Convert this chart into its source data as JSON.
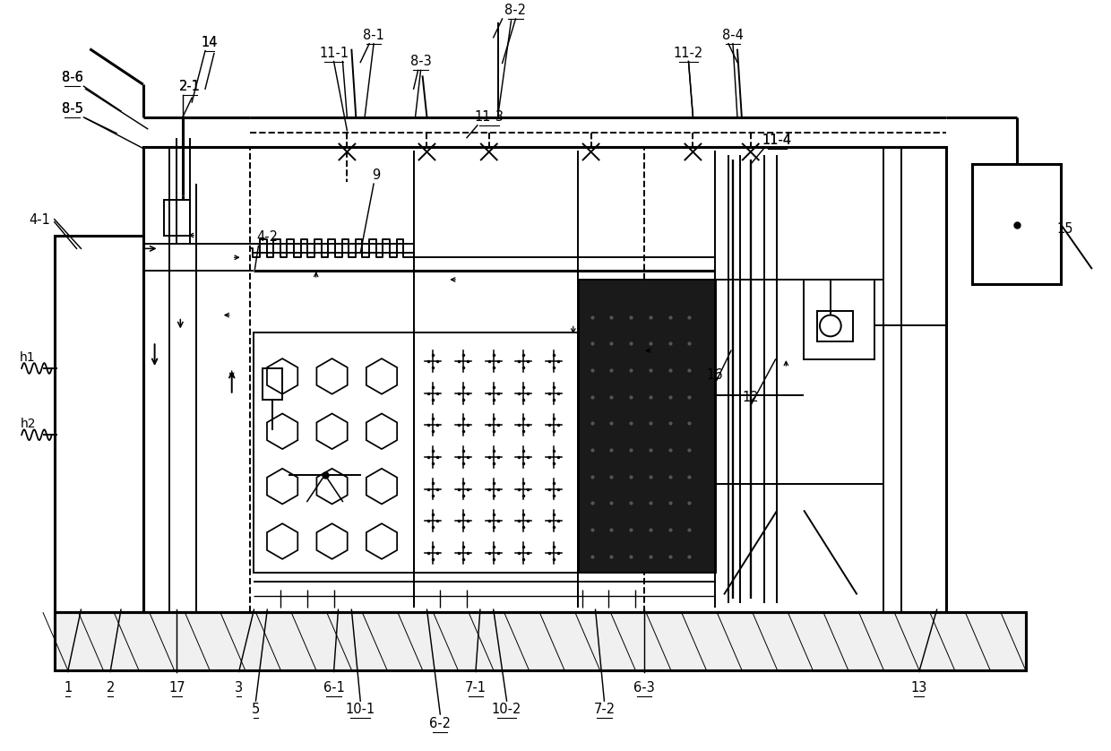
{
  "bg_color": "#ffffff",
  "lc": "#000000",
  "fig_width": 12.4,
  "fig_height": 8.38,
  "lw": 1.4,
  "lw2": 2.2
}
